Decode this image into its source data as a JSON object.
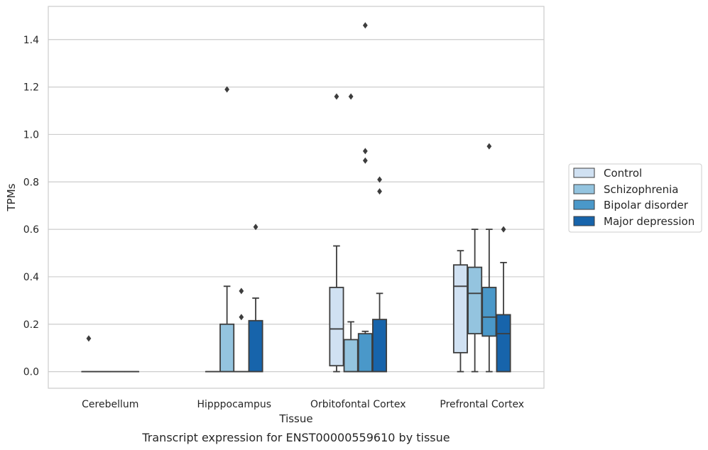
{
  "chart_data": {
    "type": "box",
    "xlabel": "Tissue",
    "ylabel": "TPMs",
    "caption": "Transcript expression for ENST00000559610 by tissue",
    "ylim": [
      -0.07,
      1.54
    ],
    "yticks": [
      0.0,
      0.2,
      0.4,
      0.6,
      0.8,
      1.0,
      1.2,
      1.4
    ],
    "ytick_labels": [
      "0.0",
      "0.2",
      "0.4",
      "0.6",
      "0.8",
      "1.0",
      "1.2",
      "1.4"
    ],
    "grid": true,
    "legend_placement": "right",
    "categories": [
      "Cerebellum",
      "Hipppocampus",
      "Orbitofontal Cortex",
      "Prefrontal Cortex"
    ],
    "series": [
      {
        "name": "Control",
        "color": "#d0e1f2",
        "boxes": [
          {
            "q1": 0.0,
            "median": 0.0,
            "q3": 0.0,
            "whisker_low": 0.0,
            "whisker_high": 0.0,
            "outliers": [
              0.14
            ]
          },
          {
            "q1": 0.0,
            "median": 0.0,
            "q3": 0.0,
            "whisker_low": 0.0,
            "whisker_high": 0.0,
            "outliers": []
          },
          {
            "q1": 0.025,
            "median": 0.18,
            "q3": 0.355,
            "whisker_low": 0.0,
            "whisker_high": 0.53,
            "outliers": [
              1.16
            ]
          },
          {
            "q1": 0.08,
            "median": 0.36,
            "q3": 0.45,
            "whisker_low": 0.0,
            "whisker_high": 0.51,
            "outliers": []
          }
        ]
      },
      {
        "name": "Schizophrenia",
        "color": "#94c4df",
        "boxes": [
          {
            "q1": 0.0,
            "median": 0.0,
            "q3": 0.0,
            "whisker_low": 0.0,
            "whisker_high": 0.0,
            "outliers": []
          },
          {
            "q1": 0.0,
            "median": 0.0,
            "q3": 0.2,
            "whisker_low": 0.0,
            "whisker_high": 0.36,
            "outliers": [
              1.19
            ]
          },
          {
            "q1": 0.0,
            "median": 0.0,
            "q3": 0.135,
            "whisker_low": 0.0,
            "whisker_high": 0.21,
            "outliers": [
              1.16
            ]
          },
          {
            "q1": 0.16,
            "median": 0.33,
            "q3": 0.44,
            "whisker_low": 0.0,
            "whisker_high": 0.6,
            "outliers": []
          }
        ]
      },
      {
        "name": "Bipolar disorder",
        "color": "#4a98c9",
        "boxes": [
          {
            "q1": 0.0,
            "median": 0.0,
            "q3": 0.0,
            "whisker_low": 0.0,
            "whisker_high": 0.0,
            "outliers": []
          },
          {
            "q1": 0.0,
            "median": 0.0,
            "q3": 0.0,
            "whisker_low": 0.0,
            "whisker_high": 0.0,
            "outliers": [
              0.34,
              0.23
            ]
          },
          {
            "q1": 0.0,
            "median": 0.0,
            "q3": 0.16,
            "whisker_low": 0.0,
            "whisker_high": 0.17,
            "outliers": [
              1.46,
              0.93,
              0.89
            ]
          },
          {
            "q1": 0.15,
            "median": 0.23,
            "q3": 0.355,
            "whisker_low": 0.0,
            "whisker_high": 0.6,
            "outliers": [
              0.95
            ]
          }
        ]
      },
      {
        "name": "Major depression",
        "color": "#1764ab",
        "boxes": [
          {
            "q1": 0.0,
            "median": 0.0,
            "q3": 0.0,
            "whisker_low": 0.0,
            "whisker_high": 0.0,
            "outliers": []
          },
          {
            "q1": 0.0,
            "median": 0.0,
            "q3": 0.215,
            "whisker_low": 0.0,
            "whisker_high": 0.31,
            "outliers": [
              0.61
            ]
          },
          {
            "q1": 0.0,
            "median": 0.0,
            "q3": 0.22,
            "whisker_low": 0.0,
            "whisker_high": 0.33,
            "outliers": [
              0.81,
              0.76
            ]
          },
          {
            "q1": 0.0,
            "median": 0.16,
            "q3": 0.24,
            "whisker_low": 0.0,
            "whisker_high": 0.46,
            "outliers": [
              0.6
            ]
          }
        ]
      }
    ]
  },
  "colors": {
    "grid": "#cccccc",
    "frame": "#cccccc",
    "box_edge": "#3d3d3d"
  }
}
